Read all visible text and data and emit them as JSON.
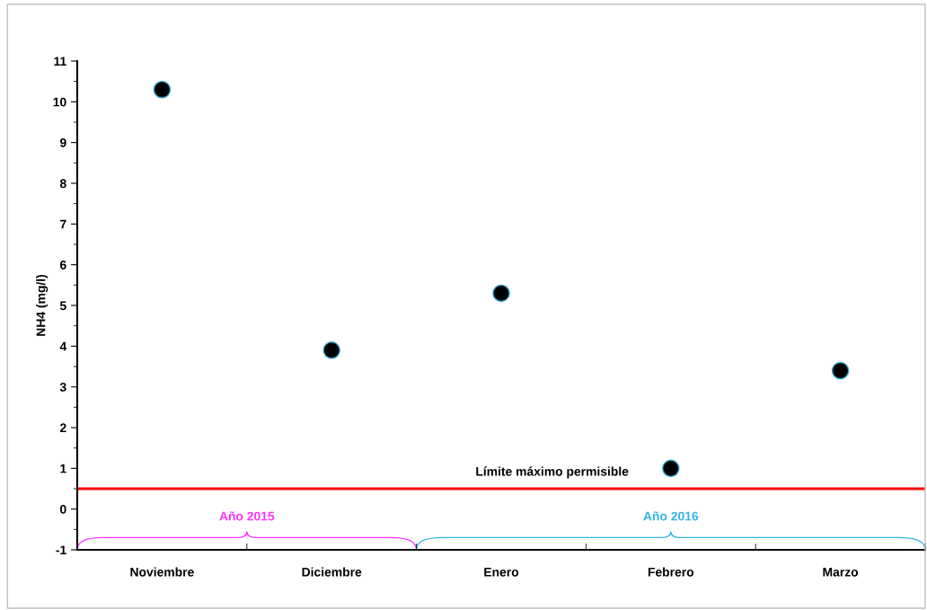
{
  "chart_data": {
    "type": "scatter",
    "ylabel": "NH4 (mg/l)",
    "categories": [
      "Noviembre",
      "Diciembre",
      "Enero",
      "Febrero",
      "Marzo"
    ],
    "series": [
      {
        "color": "#000000",
        "values": [
          10.3,
          3.9,
          5.3,
          1.0,
          3.4
        ]
      }
    ],
    "ylim": [
      -1,
      11
    ],
    "yticks": [
      -1,
      0,
      1,
      2,
      3,
      4,
      5,
      6,
      7,
      8,
      9,
      10,
      11
    ],
    "marker": "circle",
    "grid": false,
    "legend": false,
    "ref_lines": [
      {
        "axis": "y",
        "value": 0.5,
        "label": "Límite máximo permisible",
        "color": "#ff0000"
      }
    ],
    "annotations": [
      "Año 2015",
      "Año 2016"
    ]
  }
}
